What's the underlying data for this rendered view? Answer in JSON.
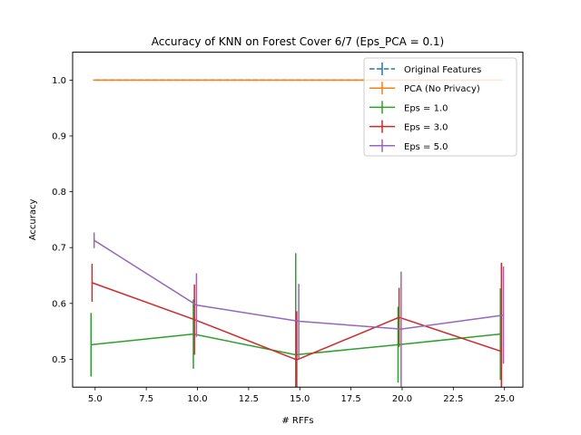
{
  "chart_data": {
    "type": "line",
    "title": "Accuracy of KNN on Forest Cover 6/7 (Eps_PCA = 0.1)",
    "xlabel": "# RFFs",
    "ylabel": "Accuracy",
    "xlim": [
      3.9,
      25.9
    ],
    "ylim": [
      0.45,
      1.05
    ],
    "xticks": [
      5.0,
      7.5,
      10.0,
      12.5,
      15.0,
      17.5,
      20.0,
      22.5,
      25.0
    ],
    "xtick_labels": [
      "5.0",
      "7.5",
      "10.0",
      "12.5",
      "15.0",
      "17.5",
      "20.0",
      "22.5",
      "25.0"
    ],
    "yticks": [
      0.5,
      0.6,
      0.7,
      0.8,
      0.9,
      1.0
    ],
    "ytick_labels": [
      "0.5",
      "0.6",
      "0.7",
      "0.8",
      "0.9",
      "1.0"
    ],
    "grid": false,
    "legend_position": "top-right",
    "series": [
      {
        "name": "Original Features",
        "color": "#1f77b4",
        "dashed": true,
        "points": [
          {
            "x": 5,
            "y": 1.0,
            "err": 0.0
          },
          {
            "x": 10,
            "y": 1.0,
            "err": 0.0
          },
          {
            "x": 15,
            "y": 1.0,
            "err": 0.0
          },
          {
            "x": 20,
            "y": 1.0,
            "err": 0.0
          },
          {
            "x": 25,
            "y": 1.0,
            "err": 0.0
          }
        ]
      },
      {
        "name": "PCA (No Privacy)",
        "color": "#ff7f0e",
        "dashed": false,
        "points": [
          {
            "x": 4.9,
            "y": 1.0,
            "err": 0.0
          },
          {
            "x": 9.9,
            "y": 1.0,
            "err": 0.0
          },
          {
            "x": 14.9,
            "y": 1.0,
            "err": 0.0
          },
          {
            "x": 19.9,
            "y": 1.0,
            "err": 0.0
          },
          {
            "x": 24.9,
            "y": 1.0,
            "err": 0.0
          }
        ]
      },
      {
        "name": "Eps = 1.0",
        "color": "#2ca02c",
        "dashed": false,
        "points": [
          {
            "x": 4.8,
            "y": 0.526,
            "err": 0.057
          },
          {
            "x": 9.8,
            "y": 0.545,
            "err": 0.062
          },
          {
            "x": 14.8,
            "y": 0.508,
            "err": 0.182
          },
          {
            "x": 19.8,
            "y": 0.526,
            "err": 0.068
          },
          {
            "x": 24.8,
            "y": 0.545,
            "err": 0.082
          }
        ]
      },
      {
        "name": "Eps = 3.0",
        "color": "#d62728",
        "dashed": false,
        "points": [
          {
            "x": 4.85,
            "y": 0.637,
            "err": 0.034
          },
          {
            "x": 9.85,
            "y": 0.571,
            "err": 0.063
          },
          {
            "x": 14.85,
            "y": 0.499,
            "err": 0.087
          },
          {
            "x": 19.85,
            "y": 0.575,
            "err": 0.053
          },
          {
            "x": 24.85,
            "y": 0.514,
            "err": 0.159
          }
        ]
      },
      {
        "name": "Eps = 5.0",
        "color": "#9467bd",
        "dashed": false,
        "points": [
          {
            "x": 4.95,
            "y": 0.713,
            "err": 0.014
          },
          {
            "x": 9.95,
            "y": 0.597,
            "err": 0.057
          },
          {
            "x": 14.95,
            "y": 0.568,
            "err": 0.067
          },
          {
            "x": 19.95,
            "y": 0.554,
            "err": 0.103
          },
          {
            "x": 24.95,
            "y": 0.579,
            "err": 0.087
          }
        ]
      }
    ]
  }
}
